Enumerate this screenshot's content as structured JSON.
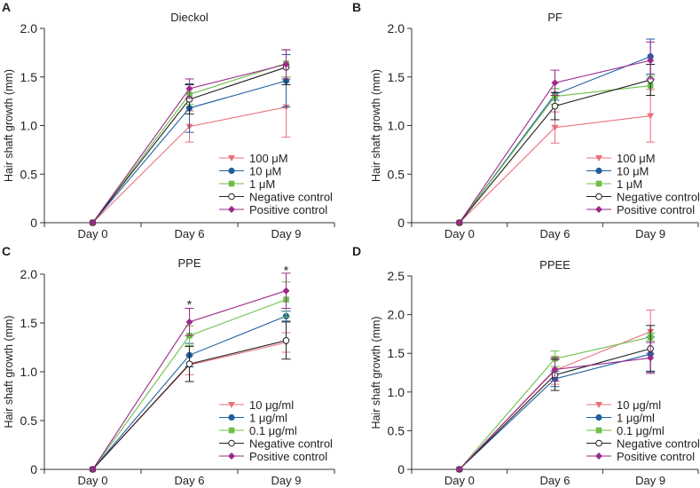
{
  "chart_data": [
    {
      "type": "line",
      "panel_label": "A",
      "title": "Dieckol",
      "ylabel": "Hair shaft growth (mm)",
      "xlabel": "",
      "categories": [
        "Day 0",
        "Day 6",
        "Day 9"
      ],
      "ylim": [
        0,
        2.0
      ],
      "yticks": [
        0,
        0.5,
        1.0,
        1.5,
        2.0
      ],
      "ytick_labels": [
        "0",
        "0.5",
        "1.0",
        "1.5",
        "2.0"
      ],
      "legend_position": "bottom-right",
      "annotations": [],
      "series": [
        {
          "name": "100 μM",
          "marker": "triangle-down",
          "color": "#e8707e",
          "values": [
            0,
            0.99,
            1.19
          ],
          "errors": [
            0,
            0.16,
            0.31
          ]
        },
        {
          "name": "10 μM",
          "marker": "circle",
          "color": "#1f5fa0",
          "values": [
            0,
            1.18,
            1.46
          ],
          "errors": [
            0,
            0.25,
            0.27
          ]
        },
        {
          "name": "1 μM",
          "marker": "square",
          "color": "#6cbf4a",
          "values": [
            0,
            1.32,
            1.64
          ],
          "errors": [
            0,
            0.1,
            0.14
          ]
        },
        {
          "name": "Negative control",
          "marker": "open-circle",
          "color": "#222222",
          "values": [
            0,
            1.27,
            1.6
          ],
          "errors": [
            0,
            0.15,
            0.18
          ]
        },
        {
          "name": "Positive control",
          "marker": "diamond",
          "color": "#9b2a8a",
          "values": [
            0,
            1.38,
            1.63
          ],
          "errors": [
            0,
            0.1,
            0.15
          ]
        }
      ]
    },
    {
      "type": "line",
      "panel_label": "B",
      "title": "PF",
      "ylabel": "Hair shaft growth (mm)",
      "xlabel": "",
      "categories": [
        "Day 0",
        "Day 6",
        "Day 9"
      ],
      "ylim": [
        0,
        2.0
      ],
      "yticks": [
        0,
        0.5,
        1.0,
        1.5,
        2.0
      ],
      "ytick_labels": [
        "0",
        "0.5",
        "1.0",
        "1.5",
        "2.0"
      ],
      "legend_position": "bottom-right",
      "annotations": [],
      "series": [
        {
          "name": "100 μM",
          "marker": "triangle-down",
          "color": "#e8707e",
          "values": [
            0,
            0.98,
            1.1
          ],
          "errors": [
            0,
            0.16,
            0.27
          ]
        },
        {
          "name": "10 μM",
          "marker": "circle",
          "color": "#1f5fa0",
          "values": [
            0,
            1.32,
            1.71
          ],
          "errors": [
            0,
            0.06,
            0.18
          ]
        },
        {
          "name": "1 μM",
          "marker": "square",
          "color": "#6cbf4a",
          "values": [
            0,
            1.3,
            1.41
          ],
          "errors": [
            0,
            0.08,
            0.1
          ]
        },
        {
          "name": "Negative control",
          "marker": "open-circle",
          "color": "#222222",
          "values": [
            0,
            1.2,
            1.47
          ],
          "errors": [
            0,
            0.14,
            0.16
          ]
        },
        {
          "name": "Positive control",
          "marker": "diamond",
          "color": "#9b2a8a",
          "values": [
            0,
            1.44,
            1.67
          ],
          "errors": [
            0,
            0.13,
            0.19
          ]
        }
      ]
    },
    {
      "type": "line",
      "panel_label": "C",
      "title": "PPE",
      "ylabel": "Hair shaft growth (mm)",
      "xlabel": "",
      "categories": [
        "Day 0",
        "Day 6",
        "Day 9"
      ],
      "ylim": [
        0,
        2.0
      ],
      "yticks": [
        0,
        0.5,
        1.0,
        1.5,
        2.0
      ],
      "ytick_labels": [
        "0",
        "0.5",
        "1.0",
        "1.5",
        "2.0"
      ],
      "legend_position": "bottom-right",
      "annotations": [
        {
          "text": "*",
          "category": "Day 6",
          "y": 1.72
        },
        {
          "text": "*",
          "category": "Day 9",
          "y": 2.07
        }
      ],
      "series": [
        {
          "name": "10 μg/ml",
          "marker": "triangle-down",
          "color": "#e8707e",
          "values": [
            0,
            1.07,
            1.3
          ],
          "errors": [
            0,
            0.1,
            0.1
          ]
        },
        {
          "name": "1 μg/ml",
          "marker": "circle",
          "color": "#1f5fa0",
          "values": [
            0,
            1.17,
            1.57
          ],
          "errors": [
            0,
            0.12,
            0.05
          ]
        },
        {
          "name": "0.1 μg/ml",
          "marker": "square",
          "color": "#6cbf4a",
          "values": [
            0,
            1.37,
            1.74
          ],
          "errors": [
            0,
            0.1,
            0.18
          ]
        },
        {
          "name": "Negative control",
          "marker": "open-circle",
          "color": "#222222",
          "values": [
            0,
            1.08,
            1.32
          ],
          "errors": [
            0,
            0.18,
            0.19
          ]
        },
        {
          "name": "Positive control",
          "marker": "diamond",
          "color": "#9b2a8a",
          "values": [
            0,
            1.51,
            1.83
          ],
          "errors": [
            0,
            0.14,
            0.18
          ]
        }
      ]
    },
    {
      "type": "line",
      "panel_label": "D",
      "title": "PPEE",
      "ylabel": "Hair shaft growth (mm)",
      "xlabel": "",
      "categories": [
        "Day 0",
        "Day 6",
        "Day 9"
      ],
      "ylim": [
        0,
        2.5
      ],
      "yticks": [
        0,
        0.5,
        1.0,
        1.5,
        2.0,
        2.5
      ],
      "ytick_labels": [
        "0",
        "0.5",
        "1.0",
        "1.5",
        "2.0",
        "2.5"
      ],
      "legend_position": "bottom-right",
      "annotations": [],
      "series": [
        {
          "name": "10 μg/ml",
          "marker": "triangle-down",
          "color": "#e8707e",
          "values": [
            0,
            1.28,
            1.78
          ],
          "errors": [
            0,
            0.18,
            0.28
          ]
        },
        {
          "name": "1 μg/ml",
          "marker": "circle",
          "color": "#1f5fa0",
          "values": [
            0,
            1.17,
            1.49
          ],
          "errors": [
            0,
            0.1,
            0.22
          ]
        },
        {
          "name": "0.1 μg/ml",
          "marker": "square",
          "color": "#6cbf4a",
          "values": [
            0,
            1.43,
            1.71
          ],
          "errors": [
            0,
            0.1,
            0.05
          ]
        },
        {
          "name": "Negative control",
          "marker": "open-circle",
          "color": "#222222",
          "values": [
            0,
            1.22,
            1.56
          ],
          "errors": [
            0,
            0.2,
            0.3
          ]
        },
        {
          "name": "Positive control",
          "marker": "diamond",
          "color": "#9b2a8a",
          "values": [
            0,
            1.29,
            1.44
          ],
          "errors": [
            0,
            0.15,
            0.2
          ]
        }
      ]
    }
  ]
}
